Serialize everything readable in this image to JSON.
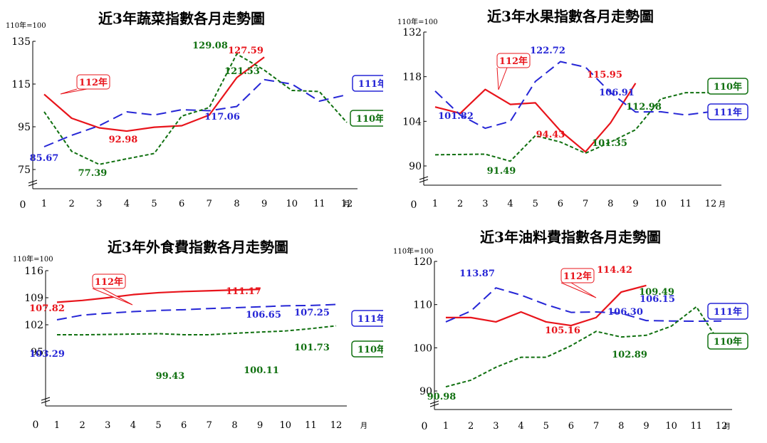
{
  "x_unit": "月",
  "index_base": "110年=100",
  "origin_label": "0",
  "colors": {
    "y112": "#e8141b",
    "y111": "#2626d6",
    "y110": "#107010"
  },
  "chart_data": [
    {
      "type": "line",
      "title": "近3年蔬菜指數各月走勢圖",
      "categories": [
        "1",
        "2",
        "3",
        "4",
        "5",
        "6",
        "7",
        "8",
        "9",
        "10",
        "11",
        "12"
      ],
      "ylim": [
        70,
        135
      ],
      "yticks": [
        75,
        95,
        115,
        135
      ],
      "series": [
        {
          "name": "112年",
          "style": "solid",
          "color": "#e8141b",
          "values": [
            110.2,
            99.0,
            94.5,
            92.98,
            94.8,
            95.5,
            100.5,
            118.0,
            127.59,
            null,
            null,
            null
          ]
        },
        {
          "name": "111年",
          "style": "dashed",
          "color": "#2626d6",
          "values": [
            85.67,
            91.0,
            95.5,
            102.0,
            100.5,
            103.0,
            102.5,
            104.5,
            117.06,
            115.0,
            107.0,
            110.0
          ]
        },
        {
          "name": "110年",
          "style": "dotted",
          "color": "#107010",
          "values": [
            102.0,
            83.5,
            77.39,
            80.0,
            82.5,
            100.0,
            104.0,
            129.08,
            121.53,
            112.0,
            111.5,
            97.0
          ]
        }
      ],
      "data_labels": [
        {
          "text": "85.67",
          "series": 1,
          "index": 0,
          "color": "#2626d6"
        },
        {
          "text": "77.39",
          "series": 2,
          "index": 2,
          "color": "#107010"
        },
        {
          "text": "92.98",
          "series": 0,
          "index": 3,
          "color": "#e8141b"
        },
        {
          "text": "129.08",
          "series": 2,
          "index": 7,
          "color": "#107010"
        },
        {
          "text": "127.59",
          "series": 0,
          "index": 8,
          "color": "#e8141b"
        },
        {
          "text": "121.53",
          "series": 2,
          "index": 8,
          "color": "#107010"
        },
        {
          "text": "117.06",
          "series": 1,
          "index": 8,
          "color": "#2626d6"
        }
      ],
      "legend": [
        {
          "text": "112年",
          "color": "#e8141b"
        },
        {
          "text": "111年",
          "color": "#2626d6"
        },
        {
          "text": "110年",
          "color": "#107010"
        }
      ]
    },
    {
      "type": "line",
      "title": "近3年水果指數各月走勢圖",
      "categories": [
        "1",
        "2",
        "3",
        "4",
        "5",
        "6",
        "7",
        "8",
        "9",
        "10",
        "11",
        "12"
      ],
      "ylim": [
        88,
        132
      ],
      "yticks": [
        90,
        104,
        118,
        132
      ],
      "series": [
        {
          "name": "112年",
          "style": "solid",
          "color": "#e8141b",
          "values": [
            108.5,
            106.5,
            114.0,
            109.3,
            109.8,
            101.0,
            94.43,
            103.5,
            115.95,
            null,
            null,
            null
          ]
        },
        {
          "name": "111年",
          "style": "dashed",
          "color": "#2626d6",
          "values": [
            113.5,
            106.0,
            101.82,
            104.0,
            116.5,
            122.72,
            121.0,
            113.0,
            106.91,
            107.0,
            106.0,
            107.0
          ]
        },
        {
          "name": "110年",
          "style": "dotted",
          "color": "#107010",
          "values": [
            93.5,
            93.6,
            93.7,
            91.49,
            99.5,
            97.5,
            94.0,
            97.5,
            101.35,
            111.0,
            112.98,
            112.98
          ]
        }
      ],
      "data_labels": [
        {
          "text": "112年",
          "series": 0,
          "index": 2,
          "color": "#e8141b"
        },
        {
          "text": "101.82",
          "series": 1,
          "index": 2,
          "color": "#2626d6"
        },
        {
          "text": "91.49",
          "series": 2,
          "index": 3,
          "color": "#107010"
        },
        {
          "text": "122.72",
          "series": 1,
          "index": 5,
          "color": "#2626d6"
        },
        {
          "text": "94.43",
          "series": 0,
          "index": 6,
          "color": "#e8141b"
        },
        {
          "text": "115.95",
          "series": 0,
          "index": 8,
          "color": "#e8141b"
        },
        {
          "text": "106.91",
          "series": 1,
          "index": 8,
          "color": "#2626d6"
        },
        {
          "text": "101.35",
          "series": 2,
          "index": 8,
          "color": "#107010"
        },
        {
          "text": "112.98",
          "series": 2,
          "index": 10,
          "color": "#107010"
        }
      ],
      "legend": [
        {
          "text": "110年",
          "color": "#107010"
        },
        {
          "text": "111年",
          "color": "#2626d6"
        }
      ]
    },
    {
      "type": "line",
      "title": "近3年外食費指數各月走勢圖",
      "categories": [
        "1",
        "2",
        "3",
        "4",
        "5",
        "6",
        "7",
        "8",
        "9",
        "10",
        "11",
        "12"
      ],
      "ylim": [
        93,
        116
      ],
      "yticks": [
        95,
        102,
        109,
        116
      ],
      "series": [
        {
          "name": "112年",
          "style": "solid",
          "color": "#e8141b",
          "values": [
            107.82,
            108.3,
            109.0,
            109.8,
            110.3,
            110.6,
            110.8,
            111.0,
            111.17,
            null,
            null,
            null
          ]
        },
        {
          "name": "111年",
          "style": "dashed",
          "color": "#2626d6",
          "values": [
            103.29,
            104.5,
            105.0,
            105.4,
            105.7,
            105.9,
            106.2,
            106.4,
            106.65,
            106.9,
            107.0,
            107.25
          ]
        },
        {
          "name": "110年",
          "style": "dotted",
          "color": "#107010",
          "values": [
            99.43,
            99.4,
            99.5,
            99.6,
            99.7,
            99.43,
            99.43,
            99.8,
            100.11,
            100.4,
            101.0,
            101.73
          ]
        }
      ],
      "data_labels": [
        {
          "text": "107.82",
          "series": 0,
          "index": 0,
          "color": "#e8141b"
        },
        {
          "text": "103.29",
          "series": 1,
          "index": 0,
          "color": "#2626d6"
        },
        {
          "text": "112年",
          "series": 0,
          "index": 2,
          "color": "#e8141b"
        },
        {
          "text": "99.43",
          "series": 2,
          "index": 5,
          "color": "#107010"
        },
        {
          "text": "111.17",
          "series": 0,
          "index": 8,
          "color": "#e8141b"
        },
        {
          "text": "106.65",
          "series": 1,
          "index": 8,
          "color": "#2626d6"
        },
        {
          "text": "100.11",
          "series": 2,
          "index": 8,
          "color": "#107010"
        },
        {
          "text": "107.25",
          "series": 1,
          "index": 11,
          "color": "#2626d6"
        },
        {
          "text": "101.73",
          "series": 2,
          "index": 11,
          "color": "#107010"
        }
      ],
      "legend": [
        {
          "text": "111年",
          "color": "#2626d6"
        },
        {
          "text": "110年",
          "color": "#107010"
        }
      ]
    },
    {
      "type": "line",
      "title": "近3年油料費指數各月走勢圖",
      "categories": [
        "1",
        "2",
        "3",
        "4",
        "5",
        "6",
        "7",
        "8",
        "9",
        "10",
        "11",
        "12"
      ],
      "ylim": [
        88,
        120
      ],
      "yticks": [
        90,
        100,
        110,
        120
      ],
      "series": [
        {
          "name": "112年",
          "style": "solid",
          "color": "#e8141b",
          "values": [
            107.0,
            107.0,
            106.0,
            108.3,
            106.0,
            105.16,
            107.0,
            112.9,
            114.42,
            null,
            null,
            null
          ]
        },
        {
          "name": "111年",
          "style": "dashed",
          "color": "#2626d6",
          "values": [
            106.0,
            108.5,
            113.87,
            112.2,
            110.0,
            108.2,
            108.3,
            108.0,
            106.3,
            106.2,
            106.15,
            106.2
          ]
        },
        {
          "name": "110年",
          "style": "dotted",
          "color": "#107010",
          "values": [
            90.98,
            92.5,
            95.5,
            97.8,
            97.8,
            100.5,
            103.8,
            102.5,
            102.89,
            105.0,
            109.49,
            100.5
          ]
        }
      ],
      "data_labels": [
        {
          "text": "90.98",
          "series": 2,
          "index": 0,
          "color": "#107010"
        },
        {
          "text": "113.87",
          "series": 1,
          "index": 2,
          "color": "#2626d6"
        },
        {
          "text": "105.16",
          "series": 0,
          "index": 5,
          "color": "#e8141b"
        },
        {
          "text": "112年",
          "series": 0,
          "index": 7,
          "color": "#e8141b"
        },
        {
          "text": "114.42",
          "series": 0,
          "index": 8,
          "color": "#e8141b"
        },
        {
          "text": "106.30",
          "series": 1,
          "index": 8,
          "color": "#2626d6"
        },
        {
          "text": "102.89",
          "series": 2,
          "index": 8,
          "color": "#107010"
        },
        {
          "text": "106.15",
          "series": 1,
          "index": 10,
          "color": "#2626d6"
        },
        {
          "text": "109.49",
          "series": 2,
          "index": 10,
          "color": "#107010"
        }
      ],
      "legend": [
        {
          "text": "111年",
          "color": "#2626d6"
        },
        {
          "text": "110年",
          "color": "#107010"
        }
      ]
    }
  ]
}
